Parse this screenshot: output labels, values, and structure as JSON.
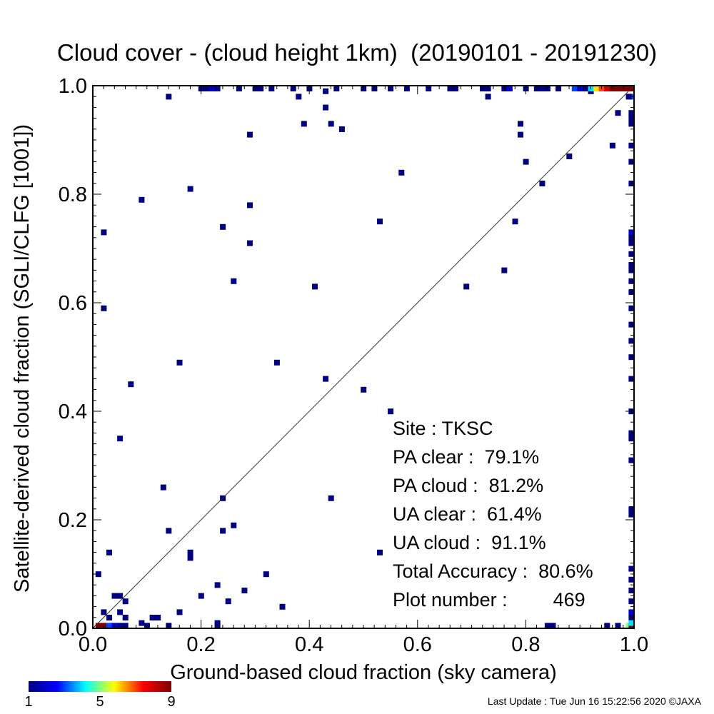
{
  "chart_data": {
    "type": "heatmap",
    "title": "Cloud cover - (cloud height 1km)  (20190101 - 20191230)",
    "xlabel": "Ground-based cloud fraction (sky camera)",
    "ylabel": "Satellite-derived cloud fraction (SGLI/CLFG [1001])",
    "xlim": [
      0.0,
      1.0
    ],
    "ylim": [
      0.0,
      1.0
    ],
    "x_ticks": [
      "0.0",
      "0.2",
      "0.4",
      "0.6",
      "0.8",
      "1.0"
    ],
    "y_ticks": [
      "0.0",
      "0.2",
      "0.4",
      "0.6",
      "0.8",
      "1.0"
    ],
    "grid": false,
    "reference_line": "y = x",
    "colorbar": {
      "min": 1,
      "max": 9,
      "tick_labels": [
        "1",
        "5",
        "9"
      ],
      "colors": [
        "#000080",
        "#0000ff",
        "#00ffff",
        "#ffff00",
        "#ff0000",
        "#800000"
      ]
    },
    "points": [
      {
        "x": 0.01,
        "y": 0.0,
        "n": 9
      },
      {
        "x": 0.02,
        "y": 0.0,
        "n": 9
      },
      {
        "x": 0.03,
        "y": 0.0,
        "n": 3
      },
      {
        "x": 0.04,
        "y": 0.0,
        "n": 2
      },
      {
        "x": 0.05,
        "y": 0.0,
        "n": 1
      },
      {
        "x": 0.06,
        "y": 0.0,
        "n": 1
      },
      {
        "x": 0.1,
        "y": 0.0,
        "n": 1
      },
      {
        "x": 0.14,
        "y": 0.0,
        "n": 1
      },
      {
        "x": 0.23,
        "y": 0.0,
        "n": 1
      },
      {
        "x": 0.84,
        "y": 0.0,
        "n": 1
      },
      {
        "x": 0.85,
        "y": 0.0,
        "n": 1
      },
      {
        "x": 0.95,
        "y": 0.0,
        "n": 1
      },
      {
        "x": 0.97,
        "y": 0.0,
        "n": 1
      },
      {
        "x": 0.99,
        "y": 0.0,
        "n": 5
      },
      {
        "x": 1.0,
        "y": 0.0,
        "n": 9
      },
      {
        "x": 0.02,
        "y": 0.03,
        "n": 1
      },
      {
        "x": 0.03,
        "y": 0.02,
        "n": 1
      },
      {
        "x": 0.04,
        "y": 0.06,
        "n": 1
      },
      {
        "x": 0.05,
        "y": 0.06,
        "n": 1
      },
      {
        "x": 0.05,
        "y": 0.03,
        "n": 1
      },
      {
        "x": 0.06,
        "y": 0.02,
        "n": 1
      },
      {
        "x": 0.06,
        "y": 0.05,
        "n": 1
      },
      {
        "x": 0.09,
        "y": 0.01,
        "n": 1
      },
      {
        "x": 0.11,
        "y": 0.02,
        "n": 1
      },
      {
        "x": 0.12,
        "y": 0.02,
        "n": 1
      },
      {
        "x": 0.16,
        "y": 0.03,
        "n": 1
      },
      {
        "x": 0.2,
        "y": 0.06,
        "n": 1
      },
      {
        "x": 0.23,
        "y": 0.01,
        "n": 1
      },
      {
        "x": 0.23,
        "y": 0.08,
        "n": 1
      },
      {
        "x": 0.25,
        "y": 0.05,
        "n": 1
      },
      {
        "x": 0.28,
        "y": 0.07,
        "n": 1
      },
      {
        "x": 0.32,
        "y": 0.1,
        "n": 1
      },
      {
        "x": 0.35,
        "y": 0.04,
        "n": 1
      },
      {
        "x": 0.01,
        "y": 0.1,
        "n": 1
      },
      {
        "x": 0.02,
        "y": 0.59,
        "n": 1
      },
      {
        "x": 0.02,
        "y": 0.73,
        "n": 1
      },
      {
        "x": 0.03,
        "y": 0.14,
        "n": 1
      },
      {
        "x": 0.05,
        "y": 0.35,
        "n": 1
      },
      {
        "x": 0.07,
        "y": 0.45,
        "n": 1
      },
      {
        "x": 0.09,
        "y": 0.79,
        "n": 1
      },
      {
        "x": 0.13,
        "y": 0.26,
        "n": 1
      },
      {
        "x": 0.14,
        "y": 0.18,
        "n": 1
      },
      {
        "x": 0.14,
        "y": 0.98,
        "n": 1
      },
      {
        "x": 0.16,
        "y": 0.49,
        "n": 1
      },
      {
        "x": 0.18,
        "y": 0.81,
        "n": 1
      },
      {
        "x": 0.18,
        "y": 0.14,
        "n": 1
      },
      {
        "x": 0.18,
        "y": 0.13,
        "n": 1
      },
      {
        "x": 0.24,
        "y": 0.74,
        "n": 1
      },
      {
        "x": 0.24,
        "y": 0.24,
        "n": 1
      },
      {
        "x": 0.24,
        "y": 0.18,
        "n": 1
      },
      {
        "x": 0.26,
        "y": 0.19,
        "n": 1
      },
      {
        "x": 0.26,
        "y": 0.64,
        "n": 1
      },
      {
        "x": 0.29,
        "y": 0.91,
        "n": 1
      },
      {
        "x": 0.29,
        "y": 0.78,
        "n": 1
      },
      {
        "x": 0.29,
        "y": 0.71,
        "n": 1
      },
      {
        "x": 0.34,
        "y": 0.49,
        "n": 1
      },
      {
        "x": 0.38,
        "y": 0.98,
        "n": 1
      },
      {
        "x": 0.39,
        "y": 0.93,
        "n": 1
      },
      {
        "x": 0.41,
        "y": 0.63,
        "n": 1
      },
      {
        "x": 0.43,
        "y": 0.99,
        "n": 1
      },
      {
        "x": 0.43,
        "y": 0.96,
        "n": 1
      },
      {
        "x": 0.43,
        "y": 0.46,
        "n": 1
      },
      {
        "x": 0.44,
        "y": 0.93,
        "n": 1
      },
      {
        "x": 0.44,
        "y": 0.24,
        "n": 1
      },
      {
        "x": 0.46,
        "y": 0.92,
        "n": 1
      },
      {
        "x": 0.5,
        "y": 0.44,
        "n": 1
      },
      {
        "x": 0.53,
        "y": 0.75,
        "n": 1
      },
      {
        "x": 0.53,
        "y": 0.14,
        "n": 1
      },
      {
        "x": 0.55,
        "y": 0.4,
        "n": 1
      },
      {
        "x": 0.57,
        "y": 0.84,
        "n": 1
      },
      {
        "x": 0.69,
        "y": 0.63,
        "n": 1
      },
      {
        "x": 0.73,
        "y": 0.98,
        "n": 1
      },
      {
        "x": 0.76,
        "y": 0.66,
        "n": 1
      },
      {
        "x": 0.78,
        "y": 0.75,
        "n": 1
      },
      {
        "x": 0.79,
        "y": 0.93,
        "n": 1
      },
      {
        "x": 0.79,
        "y": 0.91,
        "n": 1
      },
      {
        "x": 0.8,
        "y": 0.86,
        "n": 1
      },
      {
        "x": 0.83,
        "y": 0.82,
        "n": 1
      },
      {
        "x": 0.88,
        "y": 0.87,
        "n": 1
      },
      {
        "x": 0.92,
        "y": 0.99,
        "n": 1
      },
      {
        "x": 0.96,
        "y": 0.89,
        "n": 1
      },
      {
        "x": 0.97,
        "y": 0.95,
        "n": 1
      },
      {
        "x": 0.2,
        "y": 1.0,
        "n": 1
      },
      {
        "x": 0.21,
        "y": 1.0,
        "n": 1
      },
      {
        "x": 0.22,
        "y": 1.0,
        "n": 2
      },
      {
        "x": 0.23,
        "y": 1.0,
        "n": 1
      },
      {
        "x": 0.27,
        "y": 1.0,
        "n": 1
      },
      {
        "x": 0.3,
        "y": 1.0,
        "n": 1
      },
      {
        "x": 0.31,
        "y": 1.0,
        "n": 1
      },
      {
        "x": 0.33,
        "y": 1.0,
        "n": 1
      },
      {
        "x": 0.37,
        "y": 1.0,
        "n": 1
      },
      {
        "x": 0.4,
        "y": 1.0,
        "n": 1
      },
      {
        "x": 0.45,
        "y": 1.0,
        "n": 1
      },
      {
        "x": 0.5,
        "y": 1.0,
        "n": 1
      },
      {
        "x": 0.52,
        "y": 1.0,
        "n": 1
      },
      {
        "x": 0.55,
        "y": 1.0,
        "n": 1
      },
      {
        "x": 0.58,
        "y": 1.0,
        "n": 1
      },
      {
        "x": 0.62,
        "y": 1.0,
        "n": 1
      },
      {
        "x": 0.66,
        "y": 1.0,
        "n": 1
      },
      {
        "x": 0.67,
        "y": 1.0,
        "n": 1
      },
      {
        "x": 0.72,
        "y": 1.0,
        "n": 1
      },
      {
        "x": 0.73,
        "y": 1.0,
        "n": 1
      },
      {
        "x": 0.76,
        "y": 1.0,
        "n": 1
      },
      {
        "x": 0.77,
        "y": 1.0,
        "n": 2
      },
      {
        "x": 0.8,
        "y": 1.0,
        "n": 1
      },
      {
        "x": 0.82,
        "y": 1.0,
        "n": 1
      },
      {
        "x": 0.83,
        "y": 1.0,
        "n": 1
      },
      {
        "x": 0.84,
        "y": 1.0,
        "n": 1
      },
      {
        "x": 0.86,
        "y": 1.0,
        "n": 1
      },
      {
        "x": 0.89,
        "y": 1.0,
        "n": 3
      },
      {
        "x": 0.9,
        "y": 1.0,
        "n": 2
      },
      {
        "x": 0.91,
        "y": 1.0,
        "n": 1
      },
      {
        "x": 0.92,
        "y": 1.0,
        "n": 4
      },
      {
        "x": 0.93,
        "y": 1.0,
        "n": 6
      },
      {
        "x": 0.94,
        "y": 1.0,
        "n": 7
      },
      {
        "x": 0.95,
        "y": 1.0,
        "n": 8
      },
      {
        "x": 0.96,
        "y": 1.0,
        "n": 9
      },
      {
        "x": 0.97,
        "y": 1.0,
        "n": 9
      },
      {
        "x": 0.98,
        "y": 1.0,
        "n": 9
      },
      {
        "x": 0.99,
        "y": 1.0,
        "n": 9
      },
      {
        "x": 1.0,
        "y": 1.0,
        "n": 9
      },
      {
        "x": 1.0,
        "y": 0.98,
        "n": 3
      },
      {
        "x": 0.99,
        "y": 0.98,
        "n": 1
      },
      {
        "x": 1.0,
        "y": 0.95,
        "n": 1
      },
      {
        "x": 1.0,
        "y": 0.94,
        "n": 1
      },
      {
        "x": 1.0,
        "y": 0.93,
        "n": 1
      },
      {
        "x": 1.0,
        "y": 0.89,
        "n": 1
      },
      {
        "x": 1.0,
        "y": 0.86,
        "n": 1
      },
      {
        "x": 1.0,
        "y": 0.82,
        "n": 1
      },
      {
        "x": 1.0,
        "y": 0.73,
        "n": 2
      },
      {
        "x": 1.0,
        "y": 0.72,
        "n": 1
      },
      {
        "x": 1.0,
        "y": 0.71,
        "n": 1
      },
      {
        "x": 1.0,
        "y": 0.69,
        "n": 1
      },
      {
        "x": 1.0,
        "y": 0.67,
        "n": 1
      },
      {
        "x": 1.0,
        "y": 0.66,
        "n": 1
      },
      {
        "x": 1.0,
        "y": 0.64,
        "n": 1
      },
      {
        "x": 1.0,
        "y": 0.62,
        "n": 1
      },
      {
        "x": 1.0,
        "y": 0.59,
        "n": 1
      },
      {
        "x": 1.0,
        "y": 0.56,
        "n": 1
      },
      {
        "x": 1.0,
        "y": 0.53,
        "n": 1
      },
      {
        "x": 1.0,
        "y": 0.5,
        "n": 1
      },
      {
        "x": 1.0,
        "y": 0.46,
        "n": 1
      },
      {
        "x": 1.0,
        "y": 0.4,
        "n": 1
      },
      {
        "x": 1.0,
        "y": 0.36,
        "n": 1
      },
      {
        "x": 1.0,
        "y": 0.35,
        "n": 1
      },
      {
        "x": 1.0,
        "y": 0.31,
        "n": 1
      },
      {
        "x": 1.0,
        "y": 0.22,
        "n": 1
      },
      {
        "x": 1.0,
        "y": 0.21,
        "n": 1
      },
      {
        "x": 1.0,
        "y": 0.11,
        "n": 1
      },
      {
        "x": 1.0,
        "y": 0.09,
        "n": 1
      },
      {
        "x": 1.0,
        "y": 0.07,
        "n": 1
      },
      {
        "x": 1.0,
        "y": 0.05,
        "n": 1
      },
      {
        "x": 1.0,
        "y": 0.03,
        "n": 2
      },
      {
        "x": 1.0,
        "y": 0.02,
        "n": 1
      },
      {
        "x": 1.0,
        "y": 0.01,
        "n": 4
      }
    ]
  },
  "stats": {
    "site": "Site : TKSC",
    "pa_clear": "PA clear :  79.1%",
    "pa_cloud": "PA cloud :  81.2%",
    "ua_clear": "UA clear :  61.4%",
    "ua_cloud": "UA cloud :  91.1%",
    "total_accuracy": "Total Accuracy :  80.6%",
    "plot_number_label": "Plot number :",
    "plot_number_value": "469"
  },
  "footer": "Last Update : Tue Jun 16 15:22:56 2020  ©JAXA"
}
